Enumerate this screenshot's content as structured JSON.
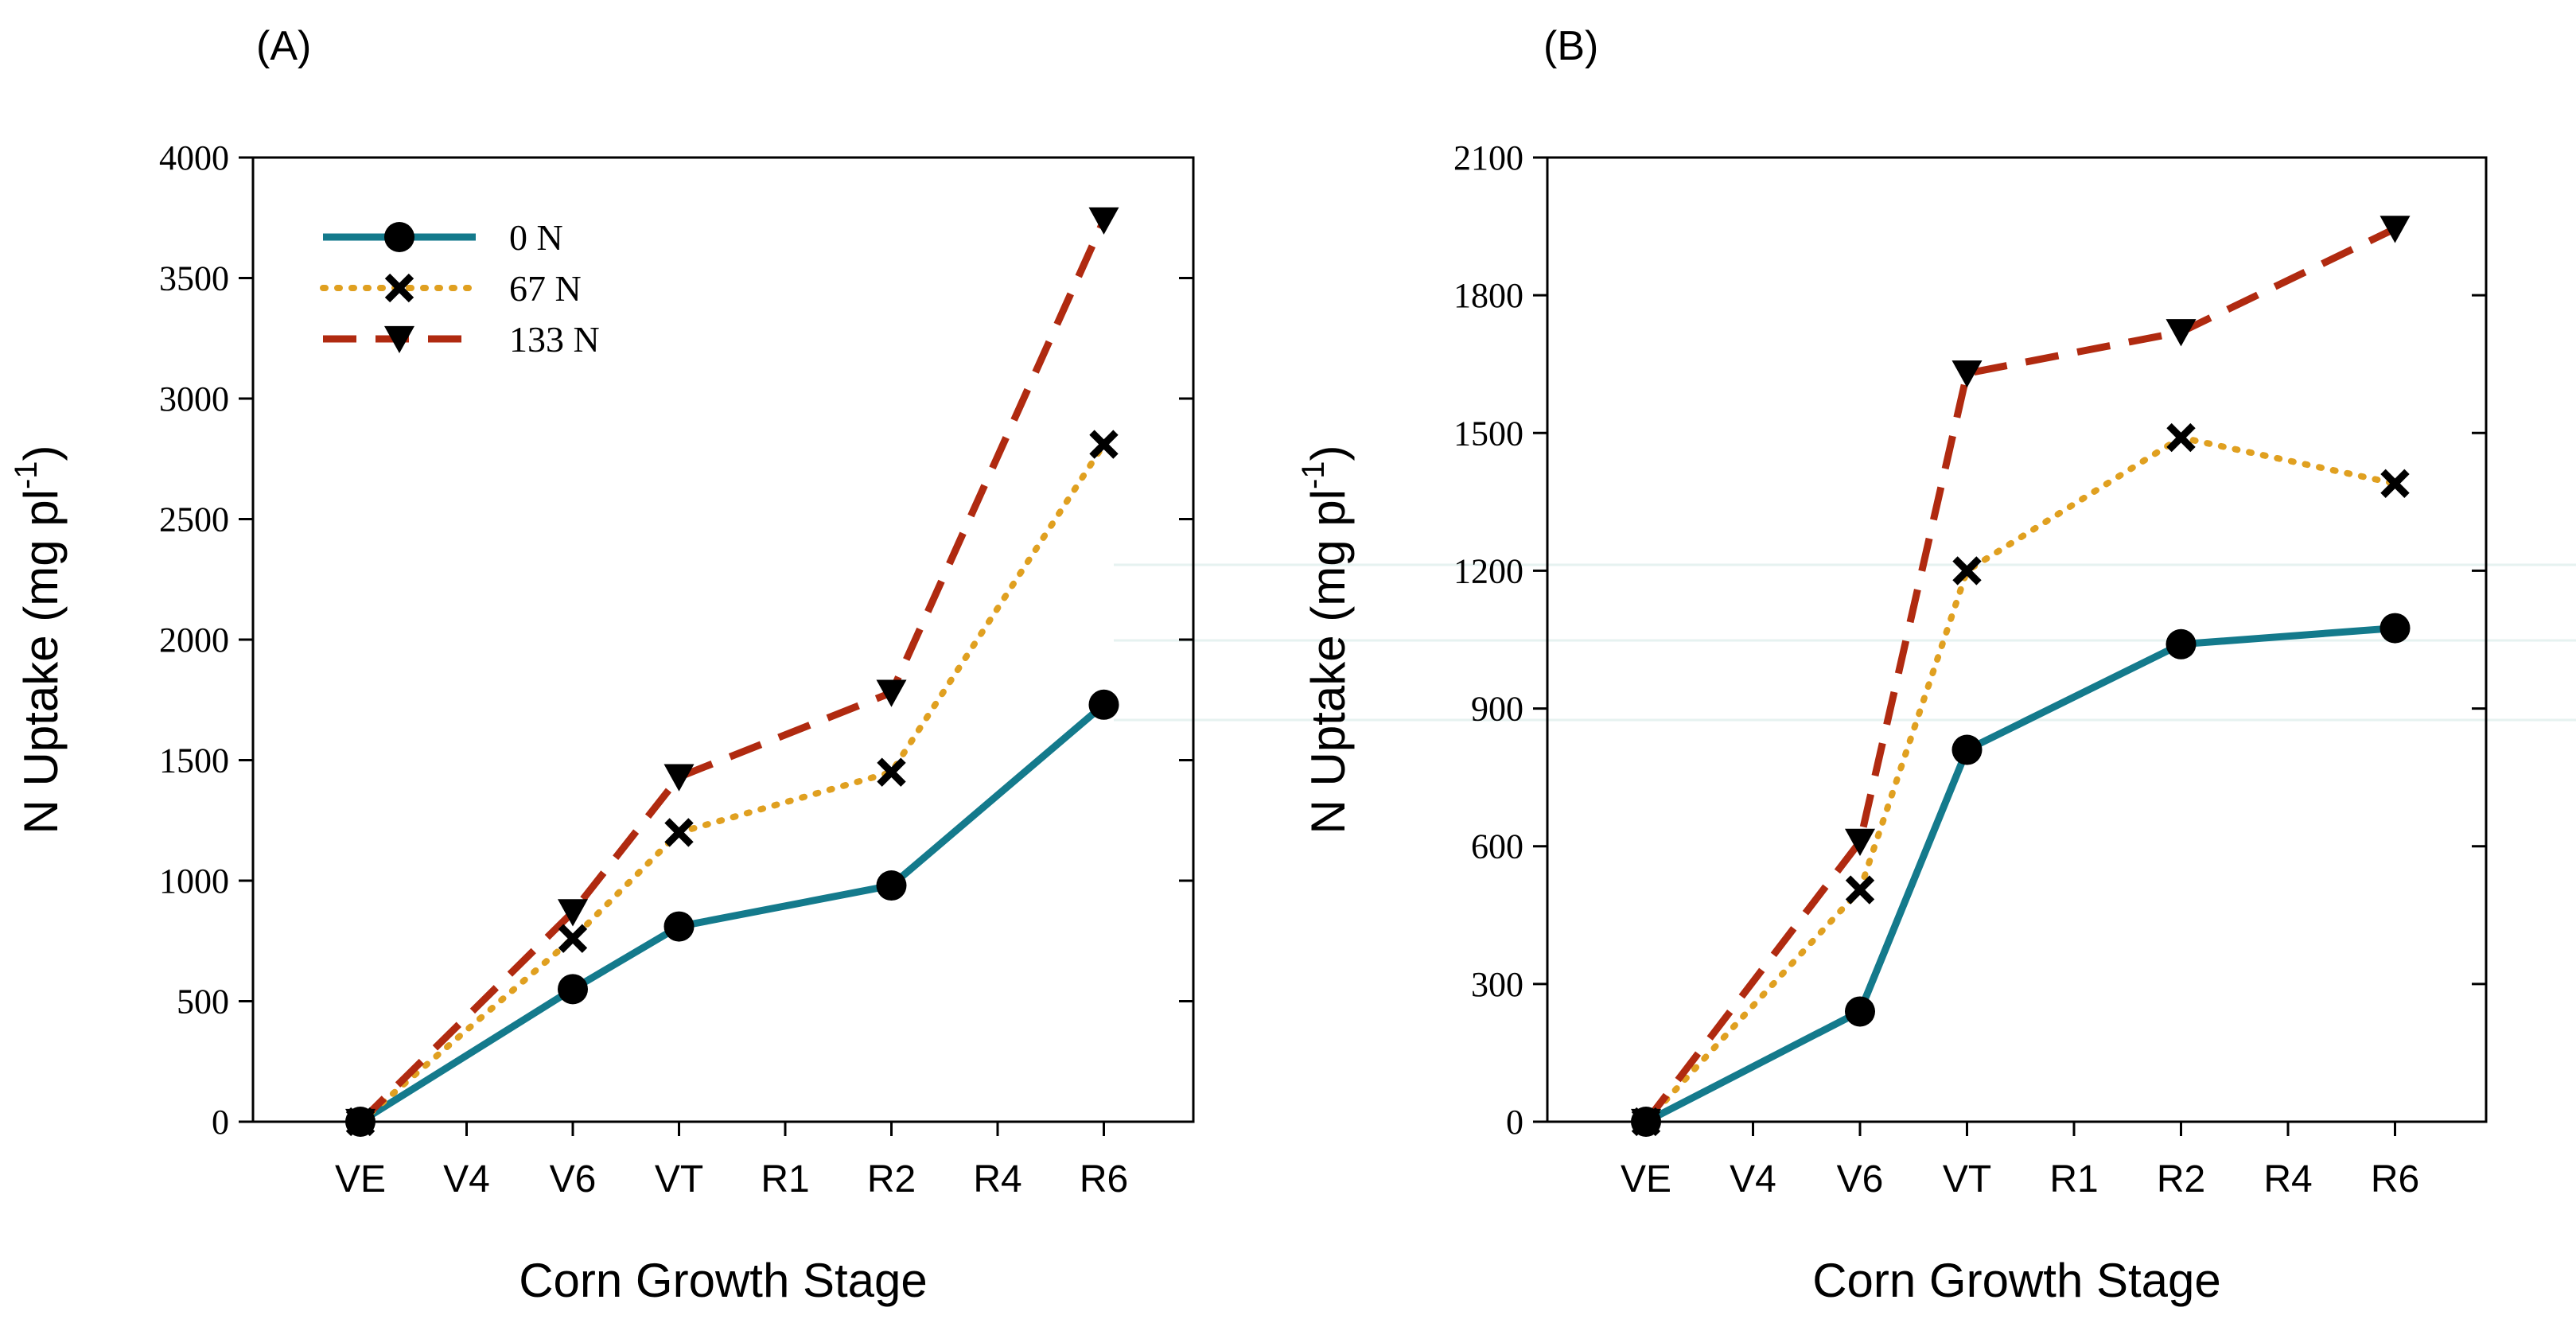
{
  "chart_data": [
    {
      "type": "line",
      "panel_label": "(A)",
      "xlabel": "Corn Growth Stage",
      "ylabel_main": "N Uptake (mg pl",
      "ylabel_sup": "-1",
      "ylabel_close": ")",
      "categories": [
        "VE",
        "V4",
        "V6",
        "VT",
        "R1",
        "R2",
        "R4",
        "R6"
      ],
      "ylim": [
        0,
        4000
      ],
      "yticks": [
        "0",
        "500",
        "1000",
        "1500",
        "2000",
        "2500",
        "3000",
        "3500",
        "4000"
      ],
      "legend_position": "top-left",
      "series": [
        {
          "name": "0 N",
          "color": "#147a8c",
          "dash": "solid",
          "marker": "circle",
          "points": [
            [
              "VE",
              0
            ],
            [
              "V6",
              550
            ],
            [
              "VT",
              810
            ],
            [
              "R2",
              980
            ],
            [
              "R6",
              1730
            ]
          ]
        },
        {
          "name": "67 N",
          "color": "#e0a020",
          "dash": "dotted",
          "marker": "x",
          "points": [
            [
              "VE",
              0
            ],
            [
              "V6",
              760
            ],
            [
              "VT",
              1200
            ],
            [
              "R2",
              1450
            ],
            [
              "R6",
              2810
            ]
          ]
        },
        {
          "name": "133 N",
          "color": "#b02a10",
          "dash": "dashed",
          "marker": "triangle-down",
          "points": [
            [
              "VE",
              0
            ],
            [
              "V6",
              870
            ],
            [
              "VT",
              1430
            ],
            [
              "R2",
              1780
            ],
            [
              "R6",
              3740
            ]
          ]
        }
      ]
    },
    {
      "type": "line",
      "panel_label": "(B)",
      "xlabel": "Corn Growth Stage",
      "ylabel_main": "N Uptake (mg pl",
      "ylabel_sup": "-1",
      "ylabel_close": ")",
      "categories": [
        "VE",
        "V4",
        "V6",
        "VT",
        "R1",
        "R2",
        "R4",
        "R6"
      ],
      "ylim": [
        0,
        2100
      ],
      "yticks": [
        "0",
        "300",
        "600",
        "900",
        "1200",
        "1500",
        "1800",
        "2100"
      ],
      "legend_position": "none",
      "series": [
        {
          "name": "0 N",
          "color": "#147a8c",
          "dash": "solid",
          "marker": "circle",
          "points": [
            [
              "VE",
              0
            ],
            [
              "V6",
              240
            ],
            [
              "VT",
              810
            ],
            [
              "R2",
              1040
            ],
            [
              "R6",
              1075
            ]
          ]
        },
        {
          "name": "67 N",
          "color": "#e0a020",
          "dash": "dotted",
          "marker": "x",
          "points": [
            [
              "VE",
              0
            ],
            [
              "V6",
              505
            ],
            [
              "VT",
              1200
            ],
            [
              "R2",
              1490
            ],
            [
              "R6",
              1390
            ]
          ]
        },
        {
          "name": "133 N",
          "color": "#b02a10",
          "dash": "dashed",
          "marker": "triangle-down",
          "points": [
            [
              "VE",
              0
            ],
            [
              "V6",
              610
            ],
            [
              "VT",
              1630
            ],
            [
              "R2",
              1720
            ],
            [
              "R6",
              1945
            ]
          ]
        }
      ]
    }
  ]
}
